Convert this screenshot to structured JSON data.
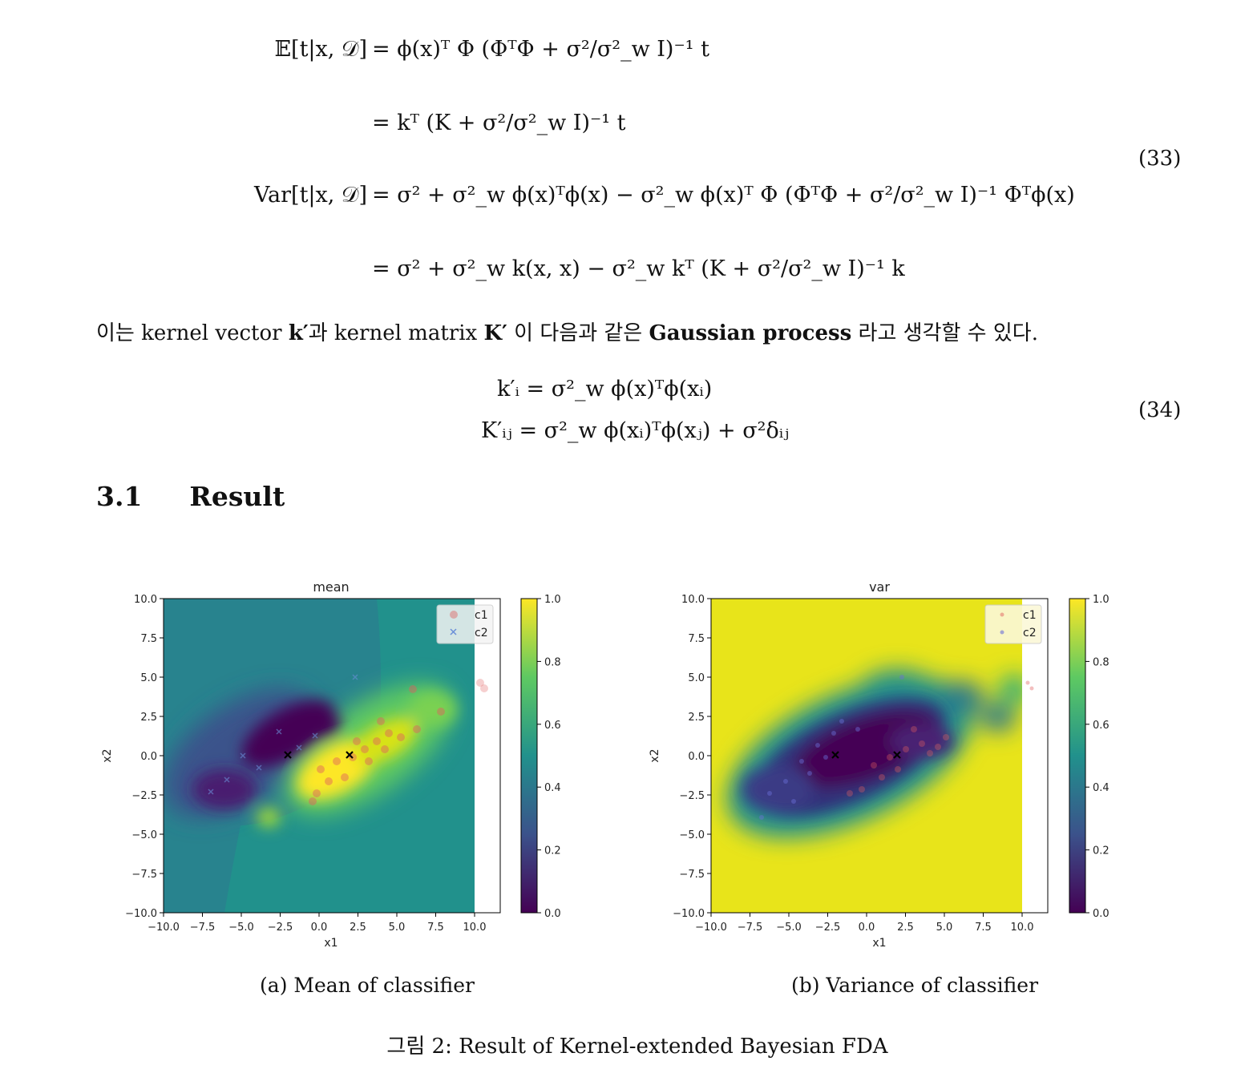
{
  "equations": {
    "eq33": {
      "number": "(33)",
      "line1_lhs": "𝔼[t|x, 𝒟]",
      "line1_rhs": "= ϕ(x)ᵀ Φ (ΦᵀΦ + σ²/σ²_w I)⁻¹ t",
      "line2_rhs": "= kᵀ (K + σ²/σ²_w I)⁻¹ t",
      "line3_lhs": "Var[t|x, 𝒟]",
      "line3_rhs": "= σ² + σ²_w ϕ(x)ᵀϕ(x) − σ²_w ϕ(x)ᵀ Φ (ΦᵀΦ + σ²/σ²_w I)⁻¹ Φᵀϕ(x)",
      "line4_rhs": "= σ² + σ²_w k(x, x) − σ²_w kᵀ (K + σ²/σ²_w I)⁻¹ k"
    },
    "eq34": {
      "number": "(34)",
      "line1": "k′ᵢ = σ²_w ϕ(x)ᵀϕ(xᵢ)",
      "line2": "K′ᵢⱼ = σ²_w ϕ(xᵢ)ᵀϕ(xⱼ) + σ²δᵢⱼ"
    }
  },
  "paragraph": {
    "part1": "이는 kernel vector ",
    "k_prime": "k′",
    "part2": "과 kernel matrix ",
    "K_prime": "K′",
    "part3": " 이 다음과 같은 ",
    "bold": "Gaussian process",
    "part4": " 라고 생각할 수 있다."
  },
  "section": {
    "number": "3.1",
    "title": "Result"
  },
  "figure": {
    "subcaption_a": "(a) Mean of classifier",
    "subcaption_b": "(b) Variance of classifier",
    "caption": "그림 2: Result of Kernel-extended Bayesian FDA"
  },
  "chart_data": [
    {
      "type": "heatmap",
      "title": "mean",
      "xlabel": "x1",
      "ylabel": "x2",
      "xlim": [
        -10,
        10
      ],
      "ylim": [
        -10,
        10
      ],
      "xticks": [
        "−10.0",
        "−7.5",
        "−5.0",
        "−2.5",
        "0.0",
        "2.5",
        "5.0",
        "7.5",
        "10.0"
      ],
      "yticks": [
        "−10.0",
        "−7.5",
        "−5.0",
        "−2.5",
        "0.0",
        "2.5",
        "5.0",
        "7.5",
        "10.0"
      ],
      "colorbar": {
        "range": [
          0,
          1
        ],
        "ticks": [
          "0.0",
          "0.2",
          "0.4",
          "0.6",
          "0.8",
          "1.0"
        ],
        "colormap": "viridis"
      },
      "legend": {
        "placement": "top-right",
        "entries": [
          {
            "label": "c1",
            "marker": "o",
            "color": "#e06060"
          },
          {
            "label": "c2",
            "marker": "x",
            "color": "#6a8fd8"
          }
        ]
      },
      "centers": [
        {
          "x": -2.0,
          "y": 0.0
        },
        {
          "x": 2.0,
          "y": 0.0
        }
      ],
      "background_value": 0.5
    },
    {
      "type": "heatmap",
      "title": "var",
      "xlabel": "x1",
      "ylabel": "x2",
      "xlim": [
        -10,
        10
      ],
      "ylim": [
        -10,
        10
      ],
      "xticks": [
        "−10.0",
        "−7.5",
        "−5.0",
        "−2.5",
        "0.0",
        "2.5",
        "5.0",
        "7.5",
        "10.0"
      ],
      "yticks": [
        "−10.0",
        "−7.5",
        "−5.0",
        "−2.5",
        "0.0",
        "2.5",
        "5.0",
        "7.5",
        "10.0"
      ],
      "colorbar": {
        "range": [
          0,
          1
        ],
        "ticks": [
          "0.0",
          "0.2",
          "0.4",
          "0.6",
          "0.8",
          "1.0"
        ],
        "colormap": "viridis"
      },
      "legend": {
        "placement": "top-right",
        "entries": [
          {
            "label": "c1",
            "marker": ".",
            "color": "#e06060"
          },
          {
            "label": "c2",
            "marker": ".",
            "color": "#6a6fd8"
          }
        ]
      },
      "centers": [
        {
          "x": -2.0,
          "y": 0.0
        },
        {
          "x": 2.0,
          "y": 0.0
        }
      ],
      "background_value": 1.0
    }
  ],
  "colors": {
    "viridis_0": "#440154",
    "viridis_025": "#3b528b",
    "viridis_05": "#21918c",
    "viridis_075": "#5ec962",
    "viridis_1": "#fde725",
    "c1": "#e06060",
    "c2": "#6a6fd8"
  }
}
